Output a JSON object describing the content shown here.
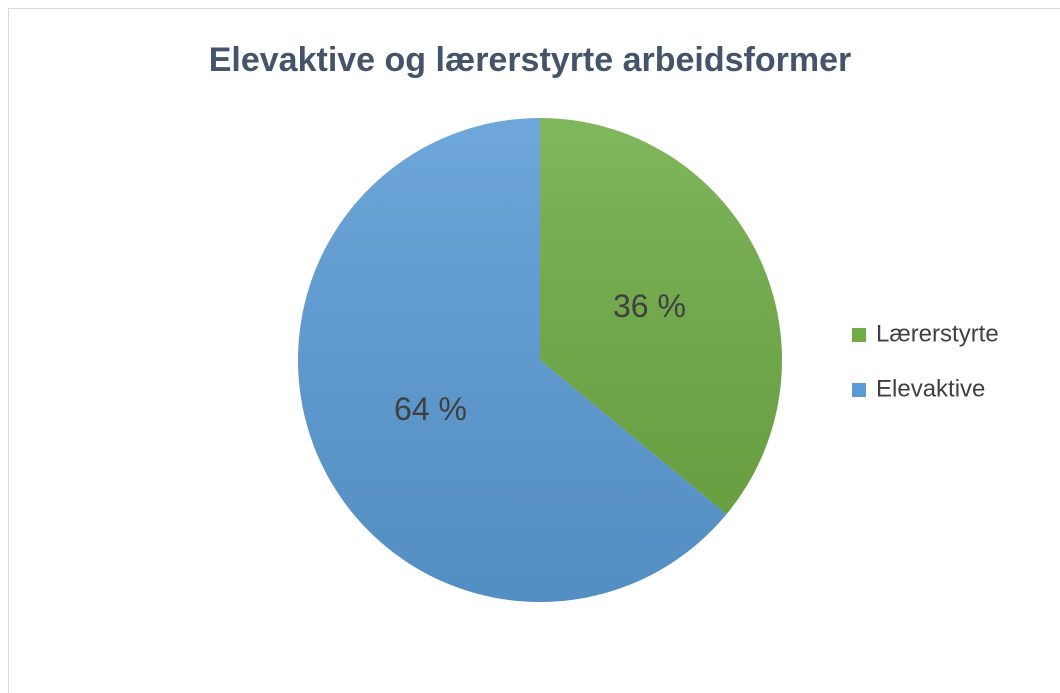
{
  "chart_data": {
    "type": "pie",
    "title": "Elevaktive og lærerstyrte arbeidsformer",
    "categories": [
      "Lærerstyrte",
      "Elevaktive"
    ],
    "values": [
      36,
      64
    ],
    "value_labels": [
      "36 %",
      "64 %"
    ],
    "colors": [
      "#70ad47",
      "#5b9bd5"
    ],
    "legend": "right"
  }
}
